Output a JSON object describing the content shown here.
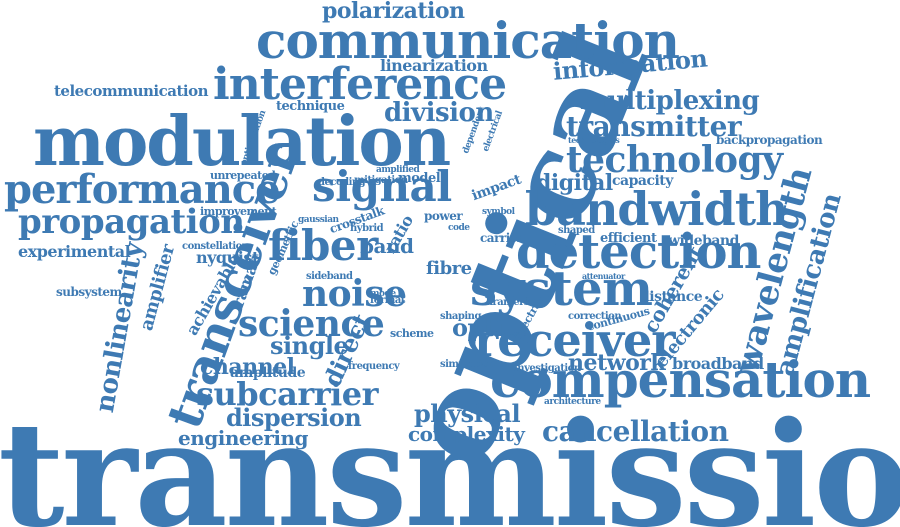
{
  "colors": {
    "word": "#3e7ab3",
    "background": "#ffffff"
  },
  "words": [
    "transmission",
    "optical",
    "modulation",
    "communication",
    "compensation",
    "interference",
    "transceiver",
    "system",
    "performance",
    "propagation",
    "bandwidth",
    "detection",
    "receiver",
    "signal",
    "technology",
    "fiber",
    "wavelength",
    "amplification",
    "nonlinearity",
    "science",
    "noise",
    "subcarrier",
    "cancellation",
    "transmitter",
    "multiplexing",
    "information",
    "polarization",
    "physical",
    "dispersion",
    "engineering",
    "complexity",
    "network",
    "digital",
    "division",
    "telecommunication",
    "experimental",
    "amplifier",
    "channel",
    "single",
    "direct",
    "optic",
    "electronic",
    "coherent",
    "broadband",
    "linearization",
    "technique",
    "backpropagation",
    "capacity",
    "wideband",
    "nyquist",
    "achievable",
    "raman",
    "amplitude",
    "subsystem",
    "distance",
    "fibre",
    "model",
    "band",
    "ratio",
    "impact",
    "unrepeated",
    "improvement",
    "crosstalk",
    "sideband",
    "constellation",
    "efficient",
    "shaped",
    "kramers",
    "carrier",
    "correction",
    "continuous",
    "scheme",
    "format",
    "mode",
    "power",
    "shaping",
    "frequency",
    "simulation",
    "investigation",
    "architecture",
    "geometric",
    "gaussian",
    "hybrid",
    "decoding",
    "mitigation",
    "amplified",
    "code",
    "symbol",
    "attenuator",
    "spectral",
    "dependent",
    "electrical",
    "optimization",
    "technologies"
  ]
}
